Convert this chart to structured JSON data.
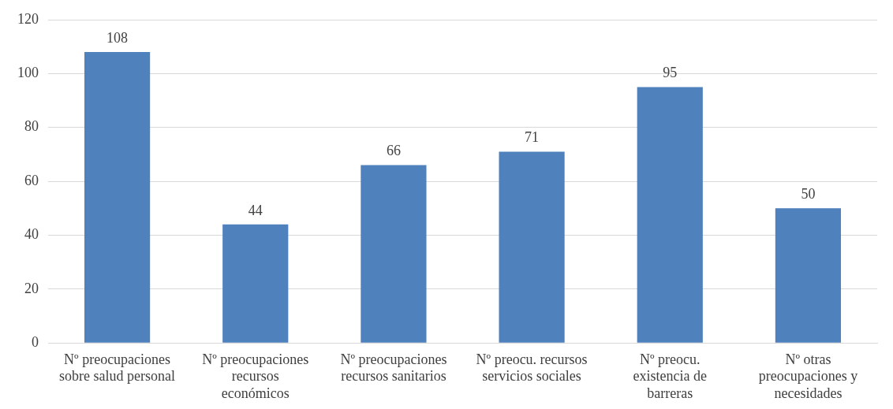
{
  "chart_data": {
    "type": "bar",
    "categories": [
      "Nº preocupaciones sobre salud personal",
      "Nº preocupaciones recursos económicos",
      "Nº preocupaciones recursos sanitarios",
      "Nº preocu. recursos servicios sociales",
      "Nº preocu. existencia de barreras",
      "Nº otras preocupaciones y necesidades"
    ],
    "values": [
      108,
      44,
      66,
      71,
      95,
      50
    ],
    "color": "#4f81bd",
    "ylim": [
      0,
      120
    ],
    "yticks": [
      0,
      20,
      40,
      60,
      80,
      100,
      120
    ],
    "grid": "y",
    "legend": false,
    "data_labels": true
  }
}
